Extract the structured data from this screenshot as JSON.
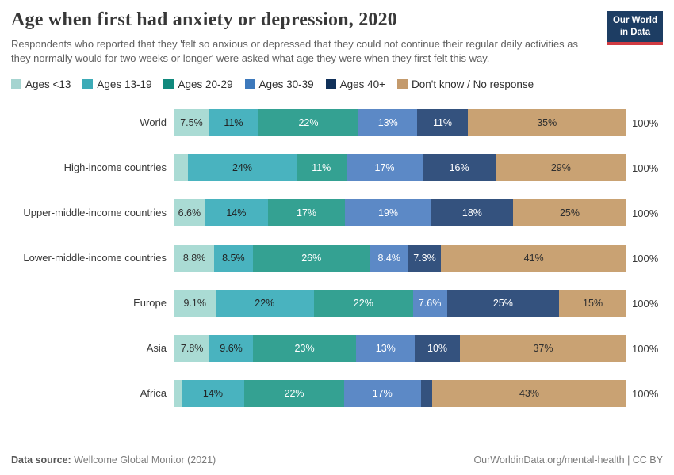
{
  "header": {
    "title": "Age when first had anxiety or depression, 2020",
    "subtitle": "Respondents who reported that they 'felt so anxious or depressed that they could not continue their regular daily activities as they normally would for two weeks or longer' were asked what age they were when they first felt this way.",
    "logo": {
      "line1": "Our World",
      "line2": "in Data",
      "bg_color": "#1d3d63",
      "accent_color": "#d13b42"
    }
  },
  "chart_data": {
    "type": "bar",
    "orientation": "horizontal",
    "stacked": true,
    "unit": "%",
    "xlim": [
      0,
      100
    ],
    "grid": false,
    "legend_position": "top",
    "axis_line_color": "#d9d9d9",
    "total_label": "100%",
    "series": [
      {
        "name": "Ages <13",
        "color": "#aadbd4",
        "legend_color": "#a5d4d0",
        "label_color": "#2f2f2f"
      },
      {
        "name": "Ages 13-19",
        "color": "#49b3bf",
        "legend_color": "#3dabb7",
        "label_color": "#222222"
      },
      {
        "name": "Ages 20-29",
        "color": "#34a192",
        "legend_color": "#11897d",
        "label_color": "#ffffff"
      },
      {
        "name": "Ages 30-39",
        "color": "#5c89c6",
        "legend_color": "#3d79bc",
        "label_color": "#ffffff"
      },
      {
        "name": "Ages 40+",
        "color": "#34527e",
        "legend_color": "#103059",
        "label_color": "#ffffff"
      },
      {
        "name": "Don't know / No response",
        "color": "#c9a273",
        "legend_color": "#c49a6c",
        "label_color": "#2f2f2f"
      }
    ],
    "categories": [
      "World",
      "High-income countries",
      "Upper-middle-income countries",
      "Lower-middle-income countries",
      "Europe",
      "Asia",
      "Africa"
    ],
    "rows": [
      {
        "name": "World",
        "values": [
          7.5,
          11,
          22,
          13,
          11,
          35
        ],
        "labels": [
          "7.5%",
          "11%",
          "22%",
          "13%",
          "11%",
          "35%"
        ]
      },
      {
        "name": "High-income countries",
        "values": [
          3,
          24,
          11,
          17,
          16,
          29
        ],
        "labels": [
          "",
          "24%",
          "11%",
          "17%",
          "16%",
          "29%"
        ]
      },
      {
        "name": "Upper-middle-income countries",
        "values": [
          6.6,
          14,
          17,
          19,
          18,
          25
        ],
        "labels": [
          "6.6%",
          "14%",
          "17%",
          "19%",
          "18%",
          "25%"
        ]
      },
      {
        "name": "Lower-middle-income countries",
        "values": [
          8.8,
          8.5,
          26,
          8.4,
          7.3,
          41
        ],
        "labels": [
          "8.8%",
          "8.5%",
          "26%",
          "8.4%",
          "7.3%",
          "41%"
        ]
      },
      {
        "name": "Europe",
        "values": [
          9.1,
          22,
          22,
          7.6,
          25,
          15
        ],
        "labels": [
          "9.1%",
          "22%",
          "22%",
          "7.6%",
          "25%",
          "15%"
        ]
      },
      {
        "name": "Asia",
        "values": [
          7.8,
          9.6,
          23,
          13,
          10,
          37
        ],
        "labels": [
          "7.8%",
          "9.6%",
          "23%",
          "13%",
          "10%",
          "37%"
        ]
      },
      {
        "name": "Africa",
        "values": [
          1.5,
          14,
          22,
          17,
          2.5,
          43
        ],
        "labels": [
          "",
          "14%",
          "22%",
          "17%",
          "",
          "43%"
        ]
      }
    ]
  },
  "footer": {
    "source_label": "Data source:",
    "source_value": " Wellcome Global Monitor (2021)",
    "right_text": "OurWorldinData.org/mental-health | CC BY"
  }
}
